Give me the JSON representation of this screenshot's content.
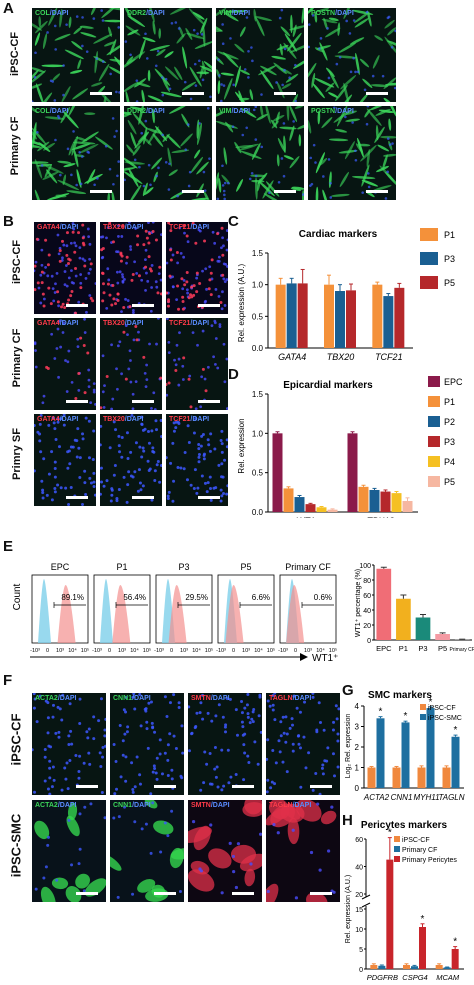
{
  "panels": {
    "A": "A",
    "B": "B",
    "C": "C",
    "D": "D",
    "E": "E",
    "F": "F",
    "G": "G",
    "H": "H"
  },
  "panelA": {
    "rows": [
      "iPSC-CF",
      "Primary CF"
    ],
    "markers": [
      "COL",
      "DDR2",
      "VIM",
      "POSTN"
    ],
    "stain": "/DAPI"
  },
  "panelB": {
    "rows": [
      "iPSC-CF",
      "Primary CF",
      "Primry SF"
    ],
    "markers": [
      "GATA4",
      "TBX20",
      "TCF21"
    ],
    "stain": "/DAPI"
  },
  "panelF": {
    "rows": [
      "iPSC-CF",
      "iPSC-SMC"
    ],
    "markers": [
      "ACTA2",
      "CNN1",
      "SMTN",
      "TAGLN"
    ],
    "stain": "/DAPI"
  },
  "colors": {
    "P1": "#f4913a",
    "P2": "#1a5f92",
    "P3": "#b5282b",
    "P4": "#f5c022",
    "P5": "#f6b7a1",
    "EPC": "#8b1a4a",
    "ipsc_cf": "#f0883e",
    "ipsc_smc": "#1e6fa0",
    "primary_cf": "#1e6fa0",
    "primary_pericytes": "#c8252b"
  },
  "chart_data": [
    {
      "id": "C",
      "type": "bar",
      "title": "Cardiac markers",
      "ylabel": "Rel. expression (A.U.)",
      "ylim": [
        0,
        1.5
      ],
      "yticks": [
        "0.0",
        "0.5",
        "1.0",
        "1.5"
      ],
      "categories": [
        "GATA4",
        "TBX20",
        "TCF21"
      ],
      "series": [
        {
          "name": "P1",
          "values": [
            1.0,
            1.0,
            1.0
          ],
          "err": [
            0.1,
            0.15,
            0.04
          ]
        },
        {
          "name": "P3",
          "values": [
            1.02,
            0.9,
            0.82
          ],
          "err": [
            0.08,
            0.1,
            0.04
          ]
        },
        {
          "name": "P5",
          "values": [
            1.02,
            0.91,
            0.95
          ],
          "err": [
            0.22,
            0.1,
            0.07
          ]
        }
      ]
    },
    {
      "id": "D",
      "type": "bar",
      "title": "Epicardial markers",
      "ylabel": "Rel. expression",
      "ylim": [
        0,
        1.5
      ],
      "yticks": [
        "0.0",
        "0.5",
        "1.0",
        "1.5"
      ],
      "categories": [
        "WT1",
        "TBX18"
      ],
      "series": [
        {
          "name": "EPC",
          "values": [
            1.0,
            1.0
          ],
          "err": [
            0.02,
            0.02
          ]
        },
        {
          "name": "P1",
          "values": [
            0.3,
            0.32
          ],
          "err": [
            0.02,
            0.02
          ]
        },
        {
          "name": "P2",
          "values": [
            0.19,
            0.28
          ],
          "err": [
            0.02,
            0.02
          ]
        },
        {
          "name": "P3",
          "values": [
            0.1,
            0.26
          ],
          "err": [
            0.01,
            0.02
          ]
        },
        {
          "name": "P4",
          "values": [
            0.06,
            0.24
          ],
          "err": [
            0.01,
            0.02
          ]
        },
        {
          "name": "P5",
          "values": [
            0.03,
            0.14
          ],
          "err": [
            0.01,
            0.04
          ]
        }
      ]
    },
    {
      "id": "E_flow",
      "type": "area",
      "xlabel": "WT1⁺",
      "ylabel": "Count",
      "xticks": [
        "-10³",
        "0",
        "10³",
        "10⁴",
        "10⁵"
      ],
      "samples": [
        {
          "name": "EPC",
          "gate": "89.1%"
        },
        {
          "name": "P1",
          "gate": "56.4%"
        },
        {
          "name": "P3",
          "gate": "29.5%"
        },
        {
          "name": "P5",
          "gate": "6.6%"
        },
        {
          "name": "Primary CF",
          "gate": "0.6%"
        }
      ]
    },
    {
      "id": "E_bar",
      "type": "bar",
      "ylabel": "WT1⁺ percentage (%)",
      "ylim": [
        0,
        100
      ],
      "yticks": [
        "0",
        "20",
        "40",
        "60",
        "80",
        "100"
      ],
      "categories": [
        "EPC",
        "P1",
        "P3",
        "P5",
        "Primary CF"
      ],
      "values": [
        95,
        55,
        30,
        8,
        0.8
      ],
      "err": [
        2,
        5,
        4,
        1.5,
        0.3
      ],
      "colors": [
        "#f06d76",
        "#f2b01e",
        "#1a8a7a",
        "#f49aa3",
        "#6a6a6a"
      ]
    },
    {
      "id": "G",
      "type": "bar",
      "title": "SMC markers",
      "ylabel": "Log₂ Rel. expression",
      "ylim": [
        0,
        4
      ],
      "yticks": [
        "0",
        "1",
        "2",
        "3",
        "4"
      ],
      "categories": [
        "ACTA2",
        "CNN1",
        "MYH11",
        "TAGLN"
      ],
      "series": [
        {
          "name": "iPSC-CF",
          "values": [
            1.0,
            1.0,
            1.0,
            1.0
          ],
          "err": [
            0.05,
            0.05,
            0.08,
            0.08
          ]
        },
        {
          "name": "iPSC-SMC",
          "values": [
            3.4,
            3.2,
            3.9,
            2.5
          ],
          "err": [
            0.08,
            0.06,
            0.06,
            0.08
          ]
        }
      ],
      "star": "*"
    },
    {
      "id": "H",
      "type": "bar",
      "title": "Pericytes markers",
      "ylabel": "Rel. expression (A.U.)",
      "yticks_low": [
        "0",
        "5",
        "10",
        "15"
      ],
      "yticks_high": [
        "20",
        "40",
        "60"
      ],
      "categories": [
        "PDGFRB",
        "CSPG4",
        "MCAM"
      ],
      "series": [
        {
          "name": "iPSC-CF",
          "values": [
            1.0,
            1.0,
            1.0
          ],
          "err": [
            0.3,
            0.3,
            0.3
          ]
        },
        {
          "name": "Primary CF",
          "values": [
            0.8,
            0.7,
            0.4
          ],
          "err": [
            0.2,
            0.2,
            0.1
          ]
        },
        {
          "name": "Primary Pericytes",
          "values": [
            45,
            10.5,
            5
          ],
          "err": [
            16,
            0.8,
            0.6
          ]
        }
      ],
      "star": "*"
    }
  ]
}
